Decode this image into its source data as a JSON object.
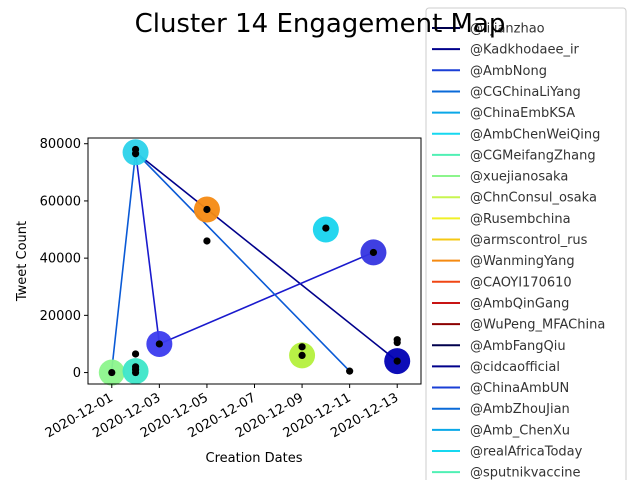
{
  "chart_data": {
    "type": "scatter",
    "title": "Cluster 14 Engagement Map",
    "xlabel": "Creation Dates",
    "ylabel": "Tweet Count",
    "x_range": [
      "2020-11-30",
      "2020-12-14"
    ],
    "ylim": [
      -4000,
      82000
    ],
    "x_ticks": [
      "2020-12-01",
      "2020-12-03",
      "2020-12-05",
      "2020-12-07",
      "2020-12-09",
      "2020-12-11",
      "2020-12-13"
    ],
    "y_ticks": [
      0,
      20000,
      40000,
      60000,
      80000
    ],
    "y_tick_labels": [
      "0",
      "20000",
      "40000",
      "60000",
      "80000"
    ],
    "grid": false,
    "legend_position": "right, outside plot",
    "lines": [
      {
        "color": "#00008b",
        "points": [
          [
            "2020-12-02",
            77000
          ],
          [
            "2020-12-13",
            4000
          ]
        ]
      },
      {
        "color": "#1a1acd",
        "points": [
          [
            "2020-12-02",
            77000
          ],
          [
            "2020-12-03",
            10000
          ],
          [
            "2020-12-12",
            42000
          ]
        ]
      },
      {
        "color": "#0a5ad6",
        "points": [
          [
            "2020-12-01",
            1000
          ],
          [
            "2020-12-02",
            77000
          ],
          [
            "2020-12-11",
            500
          ]
        ]
      }
    ],
    "bubbles": [
      {
        "x": "2020-12-01",
        "y": 0,
        "color": "#8cf58c"
      },
      {
        "x": "2020-12-02",
        "y": 500,
        "color": "#3ce6c8"
      },
      {
        "x": "2020-12-02",
        "y": 77000,
        "color": "#2bd2ea"
      },
      {
        "x": "2020-12-03",
        "y": 10000,
        "color": "#3b3bee"
      },
      {
        "x": "2020-12-05",
        "y": 57000,
        "color": "#f58a12"
      },
      {
        "x": "2020-12-09",
        "y": 6000,
        "color": "#b4f03c"
      },
      {
        "x": "2020-12-10",
        "y": 50000,
        "color": "#18d4ee"
      },
      {
        "x": "2020-12-12",
        "y": 42000,
        "color": "#3535e0"
      },
      {
        "x": "2020-12-13",
        "y": 4000,
        "color": "#0000b4"
      }
    ],
    "dots": [
      [
        "2020-12-01",
        0
      ],
      [
        "2020-12-02",
        6500
      ],
      [
        "2020-12-02",
        1000
      ],
      [
        "2020-12-02",
        78000
      ],
      [
        "2020-12-02",
        76500
      ],
      [
        "2020-12-02",
        2000
      ],
      [
        "2020-12-02",
        0
      ],
      [
        "2020-12-03",
        10000
      ],
      [
        "2020-12-05",
        57000
      ],
      [
        "2020-12-05",
        46000
      ],
      [
        "2020-12-09",
        9000
      ],
      [
        "2020-12-09",
        6000
      ],
      [
        "2020-12-10",
        50500
      ],
      [
        "2020-12-11",
        500
      ],
      [
        "2020-12-12",
        42000
      ],
      [
        "2020-12-13",
        11500
      ],
      [
        "2020-12-13",
        10500
      ],
      [
        "2020-12-13",
        4000
      ]
    ],
    "legend": [
      {
        "label": "@lijianzhao",
        "color": "#00004d"
      },
      {
        "label": "@Kadkhodaee_ir",
        "color": "#00008b"
      },
      {
        "label": "@AmbNong",
        "color": "#1a3fd6"
      },
      {
        "label": "@CGChinaLiYang",
        "color": "#0a6ad8"
      },
      {
        "label": "@ChinaEmbKSA",
        "color": "#0aa8e8"
      },
      {
        "label": "@AmbChenWeiQing",
        "color": "#16d8f0"
      },
      {
        "label": "@CGMeifangZhang",
        "color": "#50f0b4"
      },
      {
        "label": "@xuejianosaka",
        "color": "#8cf58c"
      },
      {
        "label": "@ChnConsul_osaka",
        "color": "#c8f550"
      },
      {
        "label": "@Rusembchina",
        "color": "#f0f028"
      },
      {
        "label": "@armscontrol_rus",
        "color": "#f5c814"
      },
      {
        "label": "@WanmingYang",
        "color": "#f58a12"
      },
      {
        "label": "@CAOYI170610",
        "color": "#f04614"
      },
      {
        "label": "@AmbQinGang",
        "color": "#c81414"
      },
      {
        "label": "@WuPeng_MFAChina",
        "color": "#8b0000"
      },
      {
        "label": "@AmbFangQiu",
        "color": "#00004d"
      },
      {
        "label": "@cidcaofficial",
        "color": "#00008b"
      },
      {
        "label": "@ChinaAmbUN",
        "color": "#1a3fd6"
      },
      {
        "label": "@AmbZhouJian",
        "color": "#0a6ad8"
      },
      {
        "label": "@Amb_ChenXu",
        "color": "#0aa8e8"
      },
      {
        "label": "@realAfricaToday",
        "color": "#16d8f0"
      },
      {
        "label": "@sputnikvaccine",
        "color": "#50f0b4"
      }
    ]
  }
}
